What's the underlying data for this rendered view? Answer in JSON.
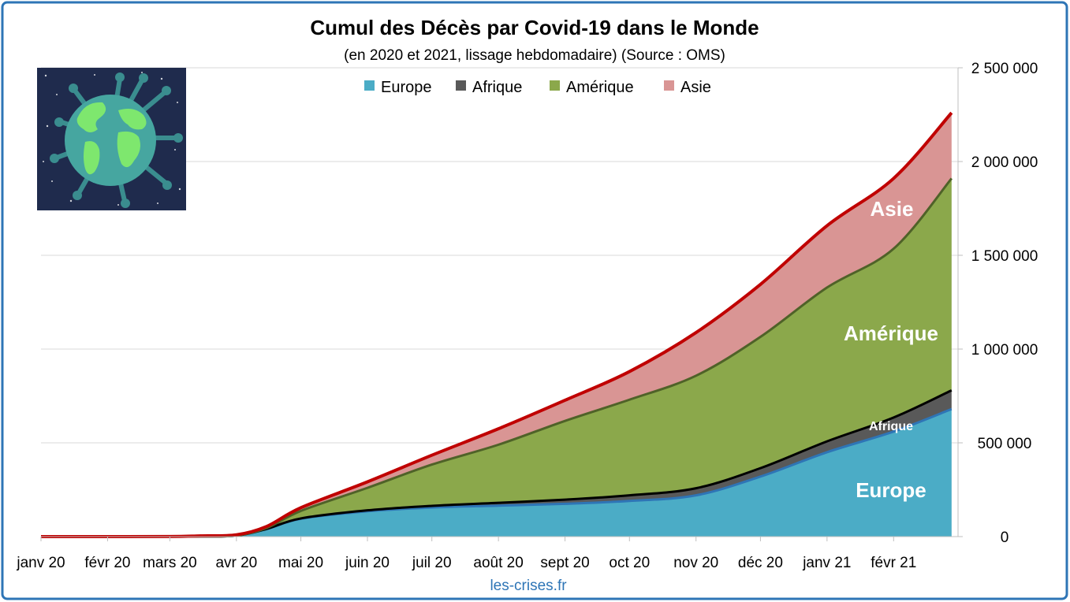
{
  "chart_data": {
    "type": "area",
    "stacked": true,
    "title": "Cumul des Décès par Covid-19 dans le Monde",
    "subtitle": "(en 2020 et 2021, lissage hebdomadaire) (Source : OMS)",
    "source": "les-crises.fr",
    "ylim": [
      0,
      2500000
    ],
    "y_axis_side": "right",
    "y_ticks": [
      "0",
      "500 000",
      "1 000 000",
      "1 500 000",
      "2 000 000",
      "2 500 000"
    ],
    "y_tick_values": [
      0,
      500000,
      1000000,
      1500000,
      2000000,
      2500000
    ],
    "x_ticks": [
      "janv 20",
      "févr 20",
      "mars 20",
      "avr 20",
      "mai 20",
      "juin 20",
      "juil 20",
      "août 20",
      "sept 20",
      "oct 20",
      "nov 20",
      "déc 20",
      "janv 21",
      "févr 21"
    ],
    "grid": "horizontal",
    "legend_position": "top",
    "x": [
      "2020-01-01",
      "2020-02-01",
      "2020-03-01",
      "2020-03-15",
      "2020-04-01",
      "2020-04-15",
      "2020-05-01",
      "2020-06-01",
      "2020-07-01",
      "2020-08-01",
      "2020-09-01",
      "2020-10-01",
      "2020-11-01",
      "2020-12-01",
      "2021-01-01",
      "2021-02-01",
      "2021-02-28"
    ],
    "series": [
      {
        "name": "Europe",
        "color": "#4bacc6",
        "edge_color": "#2e75b6",
        "values": [
          0,
          0,
          50,
          800,
          5000,
          40000,
          95000,
          135000,
          155000,
          165000,
          175000,
          190000,
          220000,
          320000,
          450000,
          560000,
          680000
        ]
      },
      {
        "name": "Afrique",
        "color": "#595959",
        "edge_color": "#000000",
        "values": [
          0,
          0,
          0,
          20,
          200,
          900,
          2000,
          5000,
          9000,
          15000,
          22000,
          30000,
          38000,
          45000,
          58000,
          75000,
          100000
        ]
      },
      {
        "name": "Amérique",
        "color": "#8ba84b",
        "edge_color": "#4f6228",
        "values": [
          0,
          0,
          0,
          30,
          500,
          5000,
          40000,
          120000,
          220000,
          310000,
          420000,
          510000,
          600000,
          700000,
          820000,
          900000,
          1130000
        ]
      },
      {
        "name": "Asie",
        "color": "#d99594",
        "edge_color": "#c00000",
        "values": [
          0,
          0,
          300,
          3000,
          4000,
          8000,
          17000,
          32000,
          50000,
          85000,
          110000,
          150000,
          230000,
          280000,
          330000,
          375000,
          350000
        ]
      }
    ],
    "area_labels": {
      "europe": "Europe",
      "afrique": "Afrique",
      "amerique": "Amérique",
      "asie": "Asie"
    }
  },
  "colors": {
    "frame_border": "#2e75b6",
    "gridline": "#d9d9d9",
    "total_line": "#c00000",
    "image_background": "#1f2b4d"
  },
  "image": {
    "icon": "globe-virus-icon"
  }
}
